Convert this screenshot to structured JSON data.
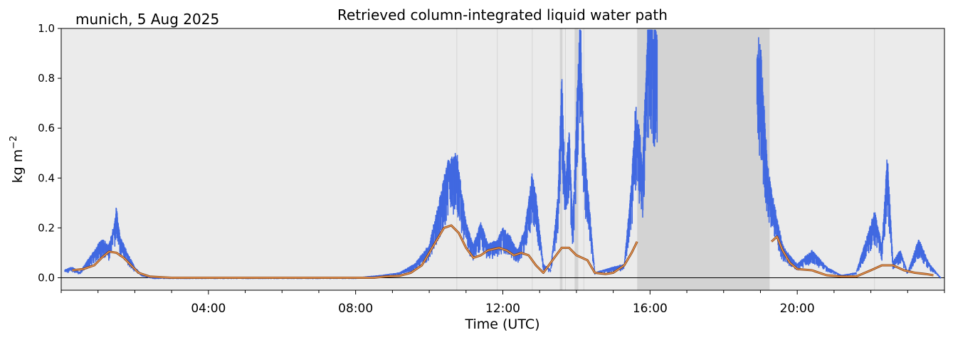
{
  "chart_data": {
    "type": "scatter",
    "title": "Retrieved column-integrated liquid water path",
    "location_label": "munich, 5 Aug 2025",
    "xlabel": "Time (UTC)",
    "ylabel": "kg m",
    "ylabel_superscript": "−2",
    "xlim_hours": [
      0,
      24
    ],
    "ylim": [
      -0.05,
      1.0
    ],
    "x_ticks": [
      {
        "hour": 4,
        "label": "04:00"
      },
      {
        "hour": 8,
        "label": "08:00"
      },
      {
        "hour": 12,
        "label": "12:00"
      },
      {
        "hour": 16,
        "label": "16:00"
      },
      {
        "hour": 20,
        "label": "20:00"
      }
    ],
    "y_ticks": [
      {
        "value": 0.0,
        "label": "0.0"
      },
      {
        "value": 0.2,
        "label": "0.2"
      },
      {
        "value": 0.4,
        "label": "0.4"
      },
      {
        "value": 0.6,
        "label": "0.6"
      },
      {
        "value": 0.8,
        "label": "0.8"
      },
      {
        "value": 1.0,
        "label": "1.0"
      }
    ],
    "grid_x_hours": [
      10.75,
      11.85,
      12.8,
      13.7,
      14.2,
      22.1
    ],
    "zero_line": 0.0,
    "flagged_intervals_hours": [
      [
        13.55,
        13.62
      ],
      [
        13.95,
        14.05
      ],
      [
        15.65,
        19.25
      ]
    ],
    "colors": {
      "background": "#ebebeb",
      "flagged": "#d3d3d3",
      "scatter": "#4169e1",
      "smooth_outer": "#8b4513",
      "smooth_inner": "#f4a460",
      "zero_line": "#000000"
    },
    "series": [
      {
        "kind": "scatter",
        "description_points": [
          [
            0.1,
            0.03
          ],
          [
            0.3,
            0.04
          ],
          [
            0.5,
            0.02
          ],
          [
            0.7,
            0.06
          ],
          [
            0.9,
            0.1
          ],
          [
            1.1,
            0.14
          ],
          [
            1.3,
            0.12
          ],
          [
            1.45,
            0.2
          ],
          [
            1.5,
            0.26
          ],
          [
            1.6,
            0.15
          ],
          [
            1.8,
            0.09
          ],
          [
            2.0,
            0.04
          ],
          [
            2.2,
            0.01
          ],
          [
            2.5,
            0.0
          ],
          [
            3.0,
            0.0
          ],
          [
            4.0,
            0.0
          ],
          [
            5.0,
            0.0
          ],
          [
            6.0,
            0.0
          ],
          [
            7.0,
            0.0
          ],
          [
            8.0,
            0.0
          ],
          [
            8.7,
            0.01
          ],
          [
            9.2,
            0.02
          ],
          [
            9.6,
            0.05
          ],
          [
            10.0,
            0.12
          ],
          [
            10.3,
            0.3
          ],
          [
            10.5,
            0.42
          ],
          [
            10.75,
            0.45
          ],
          [
            11.0,
            0.2
          ],
          [
            11.2,
            0.12
          ],
          [
            11.4,
            0.2
          ],
          [
            11.6,
            0.12
          ],
          [
            11.85,
            0.14
          ],
          [
            12.0,
            0.18
          ],
          [
            12.2,
            0.15
          ],
          [
            12.4,
            0.1
          ],
          [
            12.6,
            0.18
          ],
          [
            12.8,
            0.38
          ],
          [
            12.9,
            0.3
          ],
          [
            13.1,
            0.05
          ],
          [
            13.3,
            0.03
          ],
          [
            13.5,
            0.3
          ],
          [
            13.6,
            0.75
          ],
          [
            13.7,
            0.35
          ],
          [
            13.8,
            0.55
          ],
          [
            13.9,
            0.2
          ],
          [
            14.1,
            0.99
          ],
          [
            14.2,
            0.5
          ],
          [
            14.5,
            0.02
          ],
          [
            15.0,
            0.04
          ],
          [
            15.3,
            0.05
          ],
          [
            15.5,
            0.35
          ],
          [
            15.6,
            0.62
          ],
          [
            15.7,
            0.55
          ],
          [
            15.8,
            0.42
          ],
          [
            15.95,
            0.99
          ],
          [
            16.1,
            0.9
          ],
          [
            19.0,
            0.85
          ],
          [
            19.1,
            0.62
          ],
          [
            19.2,
            0.4
          ],
          [
            19.4,
            0.25
          ],
          [
            19.6,
            0.12
          ],
          [
            19.8,
            0.08
          ],
          [
            20.0,
            0.05
          ],
          [
            20.4,
            0.1
          ],
          [
            20.8,
            0.04
          ],
          [
            21.2,
            0.01
          ],
          [
            21.6,
            0.02
          ],
          [
            22.1,
            0.24
          ],
          [
            22.3,
            0.12
          ],
          [
            22.45,
            0.45
          ],
          [
            22.6,
            0.06
          ],
          [
            22.8,
            0.1
          ],
          [
            23.0,
            0.02
          ],
          [
            23.3,
            0.14
          ],
          [
            23.6,
            0.05
          ],
          [
            23.9,
            0.0
          ]
        ]
      },
      {
        "kind": "line",
        "segments": [
          [
            [
              0.3,
              0.03
            ],
            [
              0.6,
              0.035
            ],
            [
              0.9,
              0.05
            ],
            [
              1.1,
              0.08
            ],
            [
              1.3,
              0.105
            ],
            [
              1.5,
              0.1
            ],
            [
              1.7,
              0.08
            ],
            [
              1.9,
              0.05
            ],
            [
              2.1,
              0.02
            ],
            [
              2.4,
              0.005
            ],
            [
              3.0,
              0.0
            ],
            [
              5.0,
              0.0
            ],
            [
              7.0,
              0.0
            ],
            [
              8.5,
              0.0
            ],
            [
              8.8,
              0.005
            ],
            [
              9.2,
              0.008
            ],
            [
              9.5,
              0.02
            ],
            [
              9.8,
              0.05
            ],
            [
              10.0,
              0.1
            ],
            [
              10.2,
              0.15
            ],
            [
              10.4,
              0.2
            ],
            [
              10.6,
              0.21
            ],
            [
              10.8,
              0.18
            ],
            [
              11.0,
              0.12
            ],
            [
              11.2,
              0.08
            ],
            [
              11.4,
              0.09
            ],
            [
              11.6,
              0.11
            ],
            [
              11.9,
              0.12
            ],
            [
              12.1,
              0.11
            ],
            [
              12.3,
              0.09
            ],
            [
              12.5,
              0.1
            ],
            [
              12.7,
              0.09
            ],
            [
              12.9,
              0.05
            ],
            [
              13.1,
              0.02
            ],
            [
              13.3,
              0.06
            ],
            [
              13.6,
              0.12
            ],
            [
              13.8,
              0.12
            ],
            [
              14.0,
              0.09
            ],
            [
              14.3,
              0.07
            ],
            [
              14.5,
              0.02
            ],
            [
              14.8,
              0.015
            ],
            [
              15.0,
              0.02
            ],
            [
              15.3,
              0.05
            ],
            [
              15.5,
              0.1
            ],
            [
              15.65,
              0.145
            ]
          ],
          [
            [
              19.3,
              0.145
            ],
            [
              19.45,
              0.165
            ],
            [
              19.6,
              0.11
            ],
            [
              19.8,
              0.06
            ],
            [
              20.0,
              0.035
            ],
            [
              20.4,
              0.03
            ],
            [
              20.8,
              0.01
            ],
            [
              21.2,
              0.005
            ],
            [
              21.6,
              0.005
            ],
            [
              22.0,
              0.03
            ],
            [
              22.3,
              0.05
            ],
            [
              22.6,
              0.05
            ],
            [
              22.9,
              0.03
            ],
            [
              23.2,
              0.02
            ],
            [
              23.5,
              0.015
            ],
            [
              23.7,
              0.01
            ]
          ]
        ]
      }
    ]
  }
}
